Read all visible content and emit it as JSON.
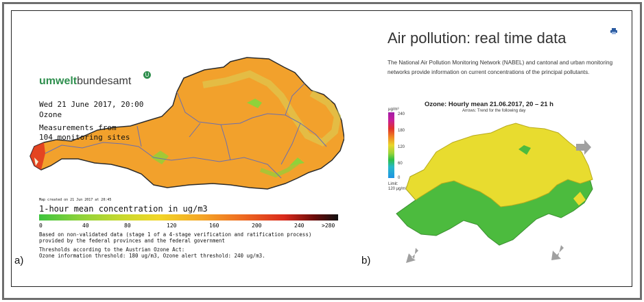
{
  "panel_labels": {
    "a": "a)",
    "b": "b)"
  },
  "panel_a": {
    "logo_bold": "umwelt",
    "logo_regular": "bundesamt",
    "logo_badge": "U",
    "date": "Wed 21 June 2017, 20:00",
    "pollutant": "Ozone",
    "measurements_line1": "Measurements from",
    "measurements_line2": "104 monitoring sites",
    "created": "Map created on 21 Jun 2017 at 20:45",
    "scale_title": "1-hour mean concentration in ug/m3",
    "scale_ticks": [
      "0",
      "40",
      "80",
      "120",
      "160",
      "200",
      "240",
      ">280"
    ],
    "note_line1": "Based on non-validated data (stage 1 of a 4-stage verification and ratification process)",
    "note_line2": "provided by the federal provinces and the federal government",
    "note_line3": "Thresholds according to the Austrian Ozone Act:",
    "note_line4": "Ozone information threshold: 180 ug/m3, Ozone alert threshold: 240 ug/m3."
  },
  "panel_b": {
    "title": "Air pollution: real time data",
    "print_icon": "printer-icon",
    "intro": "The National Air Pollution Monitoring Network (NABEL) and cantonal and urban monitoring networks provide information on current concentrations of the principal pollutants.",
    "map_title": "Ozone: Hourly mean 21.06.2017, 20 – 21 h",
    "map_subtitle": "Arrows: Trend for the following day",
    "unit": "µg/m³",
    "scale_ticks": [
      "240",
      "180",
      "120",
      "60",
      "0"
    ],
    "limit_line1": "Limit:",
    "limit_line2": "120 µg/m³",
    "arrow_icon": "trend-arrow-icon"
  },
  "colors": {
    "austria_fill": "#f2a12c",
    "swiss_yellow": "#e8dc2f",
    "swiss_green": "#4cbb3e",
    "border": "#6e6e6e"
  }
}
